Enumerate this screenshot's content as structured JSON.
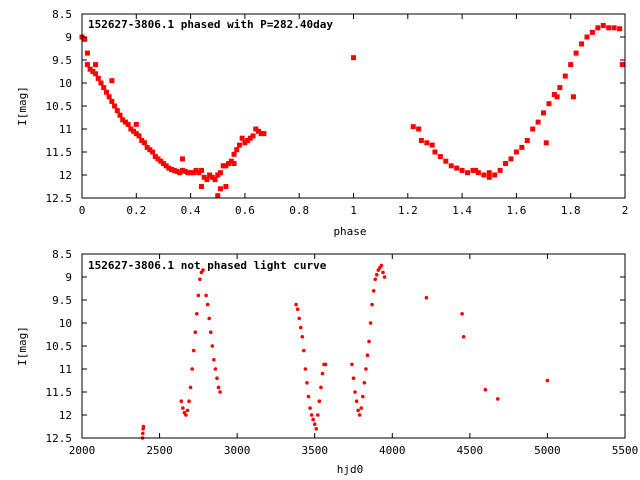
{
  "chart_data": [
    {
      "type": "scatter",
      "title": "152627-3806.1 phased with P=282.40day",
      "xlabel": "phase",
      "ylabel": "I[mag]",
      "xlim": [
        0,
        2
      ],
      "ylim": [
        12.5,
        8.5
      ],
      "y_inverted": true,
      "xticks": [
        "0",
        "0.2",
        "0.4",
        "0.6",
        "0.8",
        "1",
        "1.2",
        "1.4",
        "1.6",
        "1.8",
        "2"
      ],
      "yticks": [
        "8.5",
        "9",
        "9.5",
        "10",
        "10.5",
        "11",
        "11.5",
        "12",
        "12.5"
      ],
      "grid": false,
      "marker_color": "#ff0000",
      "x": [
        0.0,
        0.01,
        0.02,
        0.03,
        0.04,
        0.05,
        0.06,
        0.07,
        0.08,
        0.09,
        0.1,
        0.11,
        0.12,
        0.13,
        0.14,
        0.15,
        0.16,
        0.17,
        0.18,
        0.19,
        0.2,
        0.21,
        0.22,
        0.23,
        0.24,
        0.25,
        0.26,
        0.27,
        0.28,
        0.29,
        0.3,
        0.31,
        0.32,
        0.33,
        0.34,
        0.35,
        0.36,
        0.37,
        0.38,
        0.39,
        0.4,
        0.41,
        0.42,
        0.43,
        0.44,
        0.45,
        0.46,
        0.47,
        0.48,
        0.49,
        0.5,
        0.51,
        0.52,
        0.53,
        0.54,
        0.55,
        0.56,
        0.57,
        0.58,
        0.59,
        0.6,
        0.61,
        0.62,
        0.63,
        0.64,
        0.65,
        0.66,
        0.67,
        0.02,
        0.05,
        0.11,
        0.2,
        0.37,
        0.44,
        0.5,
        0.51,
        0.53,
        0.56,
        1.0,
        1.22,
        1.24,
        1.25,
        1.27,
        1.29,
        1.3,
        1.32,
        1.34,
        1.36,
        1.38,
        1.4,
        1.42,
        1.44,
        1.46,
        1.48,
        1.5,
        1.52,
        1.54,
        1.56,
        1.58,
        1.6,
        1.62,
        1.64,
        1.66,
        1.68,
        1.7,
        1.72,
        1.74,
        1.76,
        1.78,
        1.8,
        1.82,
        1.84,
        1.86,
        1.88,
        1.9,
        1.92,
        1.94,
        1.96,
        1.98,
        1.99,
        1.71,
        1.75,
        1.81,
        1.45,
        1.5
      ],
      "y": [
        9.0,
        9.05,
        9.6,
        9.7,
        9.75,
        9.8,
        9.9,
        10.0,
        10.1,
        10.2,
        10.3,
        10.4,
        10.5,
        10.6,
        10.7,
        10.8,
        10.85,
        10.9,
        11.0,
        11.05,
        11.1,
        11.15,
        11.25,
        11.3,
        11.4,
        11.45,
        11.5,
        11.6,
        11.65,
        11.7,
        11.75,
        11.8,
        11.85,
        11.88,
        11.9,
        11.92,
        11.95,
        11.9,
        11.92,
        11.95,
        11.95,
        11.95,
        11.9,
        11.95,
        11.9,
        12.05,
        12.1,
        12.0,
        12.05,
        12.1,
        12.0,
        11.95,
        11.8,
        11.8,
        11.75,
        11.7,
        11.55,
        11.45,
        11.35,
        11.2,
        11.3,
        11.25,
        11.2,
        11.15,
        11.0,
        11.05,
        11.1,
        11.1,
        9.35,
        9.6,
        9.95,
        10.9,
        11.65,
        12.25,
        12.45,
        12.3,
        12.25,
        11.75,
        9.45,
        10.95,
        11.0,
        11.25,
        11.3,
        11.35,
        11.5,
        11.6,
        11.7,
        11.8,
        11.85,
        11.9,
        11.95,
        11.9,
        11.95,
        12.0,
        11.95,
        12.0,
        11.9,
        11.75,
        11.65,
        11.5,
        11.4,
        11.25,
        11.0,
        10.85,
        10.65,
        10.45,
        10.25,
        10.1,
        9.85,
        9.6,
        9.35,
        9.15,
        9.0,
        8.9,
        8.8,
        8.75,
        8.8,
        8.8,
        8.82,
        9.6,
        11.3,
        10.3,
        10.3,
        11.9,
        12.05
      ]
    },
    {
      "type": "scatter",
      "title": "152627-3806.1 not phased light curve",
      "xlabel": "hjd0",
      "ylabel": "I[mag]",
      "xlim": [
        2000,
        5500
      ],
      "ylim": [
        12.5,
        8.5
      ],
      "y_inverted": true,
      "xticks": [
        "2000",
        "2500",
        "3000",
        "3500",
        "4000",
        "4500",
        "5000",
        "5500"
      ],
      "yticks": [
        "8.5",
        "9",
        "9.5",
        "10",
        "10.5",
        "11",
        "11.5",
        "12",
        "12.5"
      ],
      "grid": false,
      "marker_color": "#ff0000",
      "x": [
        2390,
        2392,
        2394,
        2396,
        2640,
        2650,
        2660,
        2670,
        2680,
        2690,
        2700,
        2710,
        2720,
        2730,
        2740,
        2750,
        2760,
        2770,
        2780,
        2800,
        2810,
        2820,
        2830,
        2840,
        2850,
        2860,
        2870,
        2880,
        2890,
        3380,
        3390,
        3400,
        3410,
        3420,
        3430,
        3440,
        3450,
        3460,
        3470,
        3480,
        3490,
        3500,
        3510,
        3520,
        3530,
        3540,
        3550,
        3560,
        3570,
        3740,
        3750,
        3760,
        3770,
        3780,
        3790,
        3800,
        3810,
        3820,
        3830,
        3840,
        3850,
        3860,
        3870,
        3880,
        3890,
        3900,
        3910,
        3920,
        3930,
        3940,
        3950,
        4220,
        4450,
        4460,
        4600,
        4680,
        5000
      ],
      "y": [
        12.5,
        12.4,
        12.3,
        12.25,
        11.7,
        11.85,
        11.95,
        12.0,
        11.9,
        11.7,
        11.4,
        11.0,
        10.6,
        10.2,
        9.8,
        9.4,
        9.05,
        8.9,
        8.85,
        9.4,
        9.6,
        9.9,
        10.2,
        10.5,
        10.8,
        11.0,
        11.2,
        11.4,
        11.5,
        9.6,
        9.7,
        9.9,
        10.1,
        10.3,
        10.6,
        11.0,
        11.3,
        11.6,
        11.85,
        12.0,
        12.1,
        12.2,
        12.3,
        12.0,
        11.7,
        11.4,
        11.1,
        10.9,
        10.9,
        10.9,
        11.2,
        11.5,
        11.7,
        11.9,
        12.0,
        11.85,
        11.6,
        11.3,
        11.0,
        10.7,
        10.4,
        10.0,
        9.6,
        9.3,
        9.05,
        8.95,
        8.85,
        8.8,
        8.75,
        8.9,
        9.0,
        9.45,
        9.8,
        10.3,
        11.45,
        11.65,
        11.25
      ]
    }
  ]
}
